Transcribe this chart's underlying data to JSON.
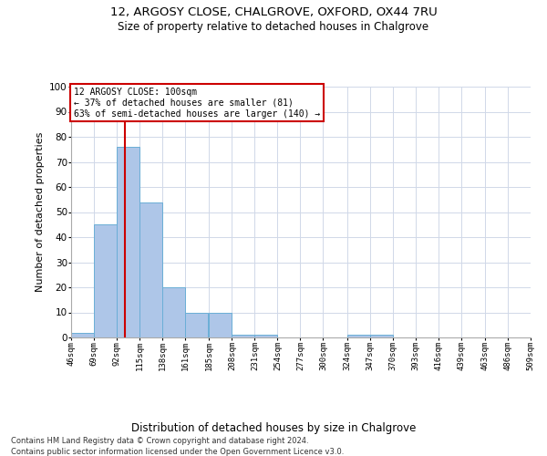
{
  "title1": "12, ARGOSY CLOSE, CHALGROVE, OXFORD, OX44 7RU",
  "title2": "Size of property relative to detached houses in Chalgrove",
  "xlabel": "Distribution of detached houses by size in Chalgrove",
  "ylabel": "Number of detached properties",
  "bin_edges": [
    46,
    69,
    92,
    115,
    138,
    161,
    185,
    208,
    231,
    254,
    277,
    300,
    324,
    347,
    370,
    393,
    416,
    439,
    463,
    486,
    509
  ],
  "bar_heights": [
    2,
    45,
    76,
    54,
    20,
    10,
    10,
    1,
    1,
    0,
    0,
    0,
    1,
    1,
    0,
    0,
    0,
    0,
    0,
    0
  ],
  "bar_color": "#aec6e8",
  "bar_edge_color": "#6aaed6",
  "vline_x": 100,
  "vline_color": "#cc0000",
  "annotation_title": "12 ARGOSY CLOSE: 100sqm",
  "annotation_line1": "← 37% of detached houses are smaller (81)",
  "annotation_line2": "63% of semi-detached houses are larger (140) →",
  "annotation_box_color": "#cc0000",
  "ylim": [
    0,
    100
  ],
  "yticks": [
    0,
    10,
    20,
    30,
    40,
    50,
    60,
    70,
    80,
    90,
    100
  ],
  "tick_labels": [
    "46sqm",
    "69sqm",
    "92sqm",
    "115sqm",
    "138sqm",
    "161sqm",
    "185sqm",
    "208sqm",
    "231sqm",
    "254sqm",
    "277sqm",
    "300sqm",
    "324sqm",
    "347sqm",
    "370sqm",
    "393sqm",
    "416sqm",
    "439sqm",
    "463sqm",
    "486sqm",
    "509sqm"
  ],
  "bg_color": "#ffffff",
  "grid_color": "#d0d8e8",
  "footer1": "Contains HM Land Registry data © Crown copyright and database right 2024.",
  "footer2": "Contains public sector information licensed under the Open Government Licence v3.0."
}
